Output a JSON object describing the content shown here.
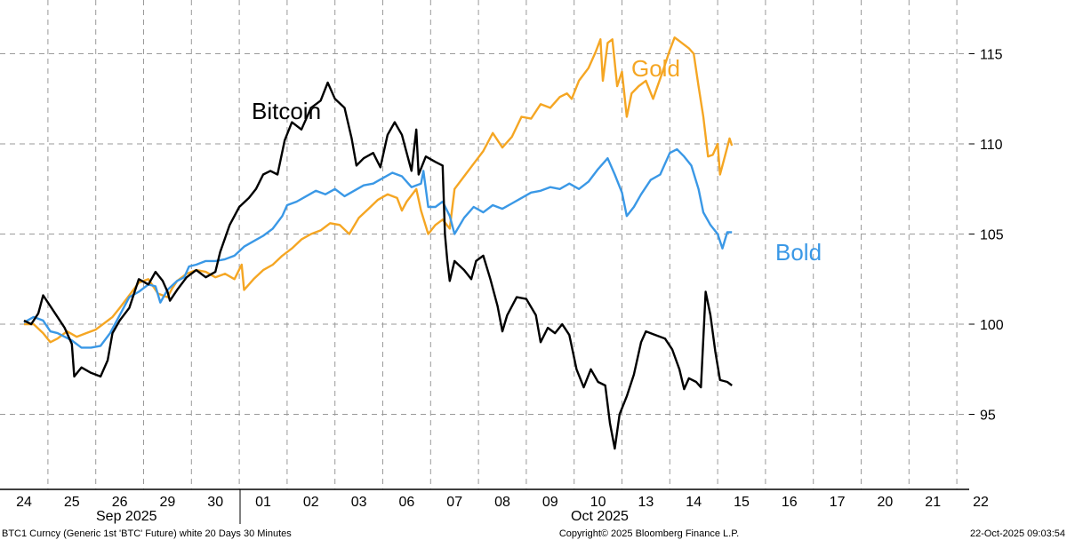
{
  "chart_data": {
    "type": "line",
    "y_axis": {
      "ticks": [
        95,
        100,
        105,
        110,
        115
      ],
      "ylim": [
        92,
        117
      ],
      "position": "right"
    },
    "x_axis": {
      "day_labels": [
        "24",
        "25",
        "26",
        "29",
        "30",
        "01",
        "02",
        "03",
        "06",
        "07",
        "08",
        "09",
        "10",
        "13",
        "14",
        "15",
        "16",
        "17",
        "20",
        "21",
        "22"
      ],
      "month_labels": [
        "Sep 2025",
        "Oct 2025"
      ]
    },
    "series": [
      {
        "name": "Bitcoin",
        "color": "#000000",
        "points": [
          [
            0,
            100.2
          ],
          [
            0.15,
            100.0
          ],
          [
            0.3,
            100.6
          ],
          [
            0.4,
            101.6
          ],
          [
            0.55,
            101.0
          ],
          [
            0.7,
            100.4
          ],
          [
            0.85,
            99.8
          ],
          [
            1.0,
            98.9
          ],
          [
            1.05,
            97.1
          ],
          [
            1.2,
            97.6
          ],
          [
            1.4,
            97.3
          ],
          [
            1.6,
            97.1
          ],
          [
            1.75,
            98.0
          ],
          [
            1.85,
            99.5
          ],
          [
            2.0,
            100.2
          ],
          [
            2.2,
            100.9
          ],
          [
            2.4,
            102.5
          ],
          [
            2.6,
            102.2
          ],
          [
            2.75,
            102.9
          ],
          [
            2.9,
            102.4
          ],
          [
            3.0,
            101.8
          ],
          [
            3.05,
            101.3
          ],
          [
            3.2,
            101.9
          ],
          [
            3.4,
            102.6
          ],
          [
            3.6,
            103.0
          ],
          [
            3.8,
            102.6
          ],
          [
            4.0,
            102.9
          ],
          [
            4.1,
            104.0
          ],
          [
            4.3,
            105.5
          ],
          [
            4.5,
            106.5
          ],
          [
            4.7,
            107.0
          ],
          [
            4.85,
            107.5
          ],
          [
            5.0,
            108.3
          ],
          [
            5.15,
            108.5
          ],
          [
            5.3,
            108.3
          ],
          [
            5.45,
            110.2
          ],
          [
            5.6,
            111.2
          ],
          [
            5.8,
            110.8
          ],
          [
            6.0,
            112.0
          ],
          [
            6.2,
            112.4
          ],
          [
            6.35,
            113.4
          ],
          [
            6.5,
            112.5
          ],
          [
            6.7,
            112.0
          ],
          [
            6.85,
            110.3
          ],
          [
            6.95,
            108.8
          ],
          [
            7.1,
            109.2
          ],
          [
            7.3,
            109.5
          ],
          [
            7.45,
            108.7
          ],
          [
            7.6,
            110.5
          ],
          [
            7.75,
            111.2
          ],
          [
            7.9,
            110.5
          ],
          [
            8.0,
            109.5
          ],
          [
            8.1,
            108.5
          ],
          [
            8.2,
            110.8
          ],
          [
            8.25,
            108.3
          ],
          [
            8.4,
            109.3
          ],
          [
            8.6,
            109.0
          ],
          [
            8.75,
            108.8
          ],
          [
            8.8,
            105.0
          ],
          [
            8.85,
            103.5
          ],
          [
            8.9,
            102.4
          ],
          [
            9.0,
            103.5
          ],
          [
            9.2,
            103.0
          ],
          [
            9.35,
            102.5
          ],
          [
            9.45,
            103.5
          ],
          [
            9.6,
            103.8
          ],
          [
            9.75,
            102.5
          ],
          [
            9.9,
            101.0
          ],
          [
            10.0,
            99.6
          ],
          [
            10.1,
            100.5
          ],
          [
            10.3,
            101.5
          ],
          [
            10.5,
            101.4
          ],
          [
            10.7,
            100.5
          ],
          [
            10.8,
            99.0
          ],
          [
            10.95,
            99.8
          ],
          [
            11.1,
            99.5
          ],
          [
            11.25,
            100.0
          ],
          [
            11.4,
            99.4
          ],
          [
            11.55,
            97.5
          ],
          [
            11.7,
            96.5
          ],
          [
            11.85,
            97.5
          ],
          [
            12.0,
            96.8
          ],
          [
            12.15,
            96.6
          ],
          [
            12.25,
            94.5
          ],
          [
            12.35,
            93.1
          ],
          [
            12.45,
            95.0
          ],
          [
            12.6,
            96.0
          ],
          [
            12.75,
            97.2
          ],
          [
            12.9,
            99.0
          ],
          [
            13.0,
            99.6
          ],
          [
            13.2,
            99.4
          ],
          [
            13.4,
            99.2
          ],
          [
            13.55,
            98.6
          ],
          [
            13.7,
            97.5
          ],
          [
            13.8,
            96.4
          ],
          [
            13.9,
            97.0
          ],
          [
            14.05,
            96.8
          ],
          [
            14.15,
            96.5
          ],
          [
            14.25,
            101.8
          ],
          [
            14.35,
            100.5
          ],
          [
            14.45,
            98.5
          ],
          [
            14.55,
            96.9
          ],
          [
            14.7,
            96.8
          ],
          [
            14.8,
            96.6
          ]
        ]
      },
      {
        "name": "Gold",
        "color": "#f5a623",
        "points": [
          [
            0,
            100.0
          ],
          [
            0.2,
            100.0
          ],
          [
            0.4,
            99.5
          ],
          [
            0.55,
            99.0
          ],
          [
            0.7,
            99.2
          ],
          [
            0.9,
            99.6
          ],
          [
            1.1,
            99.3
          ],
          [
            1.3,
            99.5
          ],
          [
            1.5,
            99.7
          ],
          [
            1.7,
            100.1
          ],
          [
            1.85,
            100.4
          ],
          [
            2.0,
            100.9
          ],
          [
            2.2,
            101.6
          ],
          [
            2.4,
            102.3
          ],
          [
            2.6,
            102.5
          ],
          [
            2.8,
            101.7
          ],
          [
            3.0,
            101.5
          ],
          [
            3.1,
            102.0
          ],
          [
            3.2,
            102.4
          ],
          [
            3.4,
            102.8
          ],
          [
            3.6,
            103.0
          ],
          [
            3.8,
            102.9
          ],
          [
            4.0,
            102.6
          ],
          [
            4.2,
            102.8
          ],
          [
            4.4,
            102.5
          ],
          [
            4.55,
            103.3
          ],
          [
            4.6,
            101.9
          ],
          [
            4.8,
            102.5
          ],
          [
            5.0,
            103.0
          ],
          [
            5.2,
            103.3
          ],
          [
            5.4,
            103.8
          ],
          [
            5.6,
            104.2
          ],
          [
            5.8,
            104.7
          ],
          [
            6.0,
            105.0
          ],
          [
            6.2,
            105.2
          ],
          [
            6.4,
            105.6
          ],
          [
            6.6,
            105.5
          ],
          [
            6.8,
            105.0
          ],
          [
            7.0,
            105.9
          ],
          [
            7.2,
            106.4
          ],
          [
            7.4,
            106.9
          ],
          [
            7.6,
            107.2
          ],
          [
            7.8,
            107.0
          ],
          [
            7.9,
            106.3
          ],
          [
            8.0,
            106.8
          ],
          [
            8.2,
            107.5
          ],
          [
            8.3,
            106.3
          ],
          [
            8.45,
            105.0
          ],
          [
            8.6,
            105.5
          ],
          [
            8.75,
            105.8
          ],
          [
            8.9,
            105.3
          ],
          [
            9.0,
            107.5
          ],
          [
            9.2,
            108.2
          ],
          [
            9.4,
            108.9
          ],
          [
            9.6,
            109.6
          ],
          [
            9.8,
            110.6
          ],
          [
            10.0,
            109.8
          ],
          [
            10.2,
            110.4
          ],
          [
            10.4,
            111.5
          ],
          [
            10.6,
            111.4
          ],
          [
            10.8,
            112.2
          ],
          [
            11.0,
            112.0
          ],
          [
            11.2,
            112.6
          ],
          [
            11.35,
            112.8
          ],
          [
            11.45,
            112.5
          ],
          [
            11.6,
            113.5
          ],
          [
            11.8,
            114.2
          ],
          [
            11.95,
            115.1
          ],
          [
            12.05,
            115.8
          ],
          [
            12.1,
            113.5
          ],
          [
            12.2,
            115.6
          ],
          [
            12.3,
            115.8
          ],
          [
            12.4,
            113.2
          ],
          [
            12.5,
            114.0
          ],
          [
            12.6,
            111.5
          ],
          [
            12.7,
            112.8
          ],
          [
            12.85,
            113.2
          ],
          [
            13.0,
            113.5
          ],
          [
            13.15,
            112.5
          ],
          [
            13.35,
            114.0
          ],
          [
            13.5,
            115.2
          ],
          [
            13.6,
            115.9
          ],
          [
            13.75,
            115.6
          ],
          [
            13.9,
            115.3
          ],
          [
            14.0,
            115.0
          ],
          [
            14.1,
            113.2
          ],
          [
            14.2,
            111.5
          ],
          [
            14.3,
            109.3
          ],
          [
            14.4,
            109.4
          ],
          [
            14.5,
            110.0
          ],
          [
            14.55,
            108.3
          ],
          [
            14.65,
            109.3
          ],
          [
            14.75,
            110.3
          ],
          [
            14.8,
            109.9
          ]
        ]
      },
      {
        "name": "Bold",
        "color": "#3a98e6",
        "points": [
          [
            0,
            100.1
          ],
          [
            0.2,
            100.4
          ],
          [
            0.4,
            100.2
          ],
          [
            0.55,
            99.6
          ],
          [
            0.7,
            99.5
          ],
          [
            0.85,
            99.3
          ],
          [
            1.0,
            99.1
          ],
          [
            1.2,
            98.7
          ],
          [
            1.4,
            98.7
          ],
          [
            1.6,
            98.8
          ],
          [
            1.8,
            99.5
          ],
          [
            2.0,
            100.5
          ],
          [
            2.2,
            101.5
          ],
          [
            2.4,
            101.8
          ],
          [
            2.6,
            102.2
          ],
          [
            2.75,
            102.1
          ],
          [
            2.85,
            101.2
          ],
          [
            3.0,
            101.9
          ],
          [
            3.2,
            102.4
          ],
          [
            3.35,
            102.6
          ],
          [
            3.45,
            103.2
          ],
          [
            3.6,
            103.3
          ],
          [
            3.8,
            103.5
          ],
          [
            4.0,
            103.5
          ],
          [
            4.2,
            103.6
          ],
          [
            4.4,
            103.8
          ],
          [
            4.6,
            104.3
          ],
          [
            4.8,
            104.6
          ],
          [
            5.0,
            104.9
          ],
          [
            5.2,
            105.3
          ],
          [
            5.4,
            106.0
          ],
          [
            5.5,
            106.6
          ],
          [
            5.7,
            106.8
          ],
          [
            5.9,
            107.1
          ],
          [
            6.1,
            107.4
          ],
          [
            6.3,
            107.2
          ],
          [
            6.5,
            107.5
          ],
          [
            6.7,
            107.1
          ],
          [
            6.9,
            107.4
          ],
          [
            7.1,
            107.7
          ],
          [
            7.3,
            107.8
          ],
          [
            7.5,
            108.1
          ],
          [
            7.7,
            108.4
          ],
          [
            7.9,
            108.2
          ],
          [
            8.1,
            107.6
          ],
          [
            8.3,
            107.8
          ],
          [
            8.35,
            108.5
          ],
          [
            8.45,
            106.5
          ],
          [
            8.6,
            106.5
          ],
          [
            8.75,
            106.8
          ],
          [
            8.9,
            106.0
          ],
          [
            9.0,
            105.0
          ],
          [
            9.2,
            105.9
          ],
          [
            9.4,
            106.5
          ],
          [
            9.6,
            106.2
          ],
          [
            9.8,
            106.6
          ],
          [
            10.0,
            106.4
          ],
          [
            10.2,
            106.7
          ],
          [
            10.4,
            107.0
          ],
          [
            10.6,
            107.3
          ],
          [
            10.8,
            107.4
          ],
          [
            11.0,
            107.6
          ],
          [
            11.2,
            107.5
          ],
          [
            11.4,
            107.8
          ],
          [
            11.6,
            107.5
          ],
          [
            11.8,
            107.9
          ],
          [
            12.0,
            108.6
          ],
          [
            12.2,
            109.2
          ],
          [
            12.35,
            108.3
          ],
          [
            12.5,
            107.3
          ],
          [
            12.6,
            106.0
          ],
          [
            12.75,
            106.5
          ],
          [
            12.9,
            107.2
          ],
          [
            13.1,
            108.0
          ],
          [
            13.3,
            108.3
          ],
          [
            13.5,
            109.5
          ],
          [
            13.65,
            109.7
          ],
          [
            13.8,
            109.3
          ],
          [
            13.95,
            108.8
          ],
          [
            14.1,
            107.5
          ],
          [
            14.2,
            106.2
          ],
          [
            14.35,
            105.5
          ],
          [
            14.5,
            105.0
          ],
          [
            14.6,
            104.2
          ],
          [
            14.7,
            105.1
          ],
          [
            14.8,
            105.1
          ]
        ]
      }
    ],
    "annotations": [
      {
        "text": "Bitcoin",
        "color": "#000000"
      },
      {
        "text": "Gold",
        "color": "#f5a623"
      },
      {
        "text": "Bold",
        "color": "#3a98e6"
      }
    ]
  },
  "footer": {
    "left": "BTC1 Curncy (Generic 1st 'BTC' Future) white 20 Days 30 Minutes",
    "center": "Copyright© 2025 Bloomberg Finance L.P.",
    "right": "22-Oct-2025 09:03:54"
  }
}
